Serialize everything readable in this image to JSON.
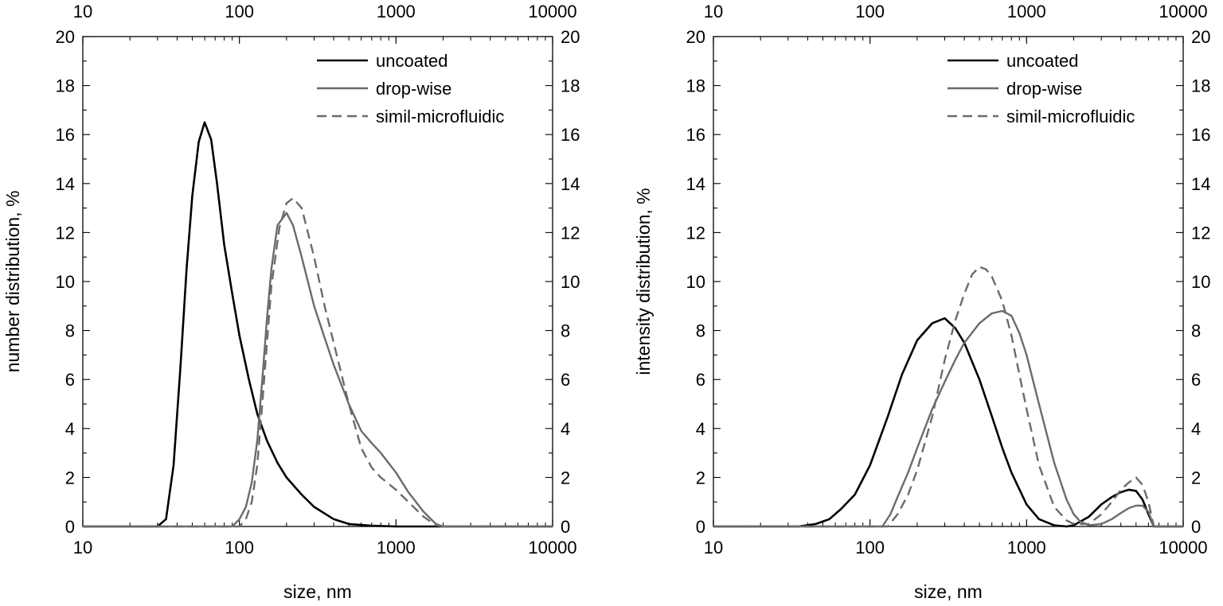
{
  "chart_data": [
    {
      "type": "line",
      "xscale": "log",
      "xlim": [
        10,
        10000
      ],
      "ylim": [
        0,
        20
      ],
      "xticks": [
        "10",
        "100",
        "1000",
        "10000"
      ],
      "yticks": [
        "0",
        "2",
        "4",
        "6",
        "8",
        "10",
        "12",
        "14",
        "16",
        "18",
        "20"
      ],
      "xlabel": "size, nm",
      "ylabel": "number distribution, %",
      "legend_position": "top-right",
      "series": [
        {
          "name": "uncoated",
          "color": "#000000",
          "dash": "solid",
          "x": [
            10,
            30,
            34,
            38,
            42,
            46,
            50,
            55,
            60,
            66,
            72,
            80,
            90,
            100,
            115,
            130,
            150,
            175,
            200,
            250,
            300,
            400,
            500,
            700,
            1000,
            10000
          ],
          "y": [
            0,
            0,
            0.3,
            2.5,
            6.5,
            10.5,
            13.5,
            15.7,
            16.5,
            15.8,
            14,
            11.5,
            9.5,
            7.8,
            6.0,
            4.6,
            3.5,
            2.6,
            2.0,
            1.3,
            0.8,
            0.3,
            0.1,
            0.03,
            0,
            0
          ]
        },
        {
          "name": "drop-wise",
          "color": "#6b6b6b",
          "dash": "solid",
          "x": [
            10,
            90,
            100,
            110,
            120,
            130,
            140,
            150,
            160,
            175,
            200,
            220,
            250,
            300,
            350,
            400,
            500,
            600,
            700,
            800,
            1000,
            1200,
            1500,
            1800,
            2000,
            10000
          ],
          "y": [
            0,
            0,
            0.3,
            0.8,
            1.8,
            3.5,
            6,
            8.5,
            10.5,
            12.3,
            12.8,
            12.3,
            11,
            9,
            7.7,
            6.6,
            5,
            3.9,
            3.4,
            3.0,
            2.2,
            1.4,
            0.6,
            0.1,
            0,
            0
          ]
        },
        {
          "name": "simil-microfluidic",
          "color": "#6b6b6b",
          "dash": "dashed",
          "x": [
            10,
            100,
            110,
            120,
            130,
            140,
            150,
            160,
            180,
            200,
            220,
            250,
            300,
            350,
            400,
            500,
            600,
            700,
            800,
            1000,
            1200,
            1500,
            1800,
            2000,
            10000
          ],
          "y": [
            0,
            0,
            0.3,
            1.0,
            2.5,
            5,
            7.5,
            9.8,
            12.2,
            13.2,
            13.4,
            13,
            11,
            9,
            7.5,
            5.0,
            3.2,
            2.4,
            2.0,
            1.5,
            1.0,
            0.4,
            0.05,
            0,
            0
          ]
        }
      ]
    },
    {
      "type": "line",
      "xscale": "log",
      "xlim": [
        10,
        10000
      ],
      "ylim": [
        0,
        20
      ],
      "xticks": [
        "10",
        "100",
        "1000",
        "10000"
      ],
      "yticks": [
        "0",
        "2",
        "4",
        "6",
        "8",
        "10",
        "12",
        "14",
        "16",
        "18",
        "20"
      ],
      "xlabel": "size, nm",
      "ylabel": "intensity distribution, %",
      "legend_position": "top-right",
      "series": [
        {
          "name": "uncoated",
          "color": "#000000",
          "dash": "solid",
          "x": [
            10,
            35,
            45,
            55,
            65,
            80,
            100,
            130,
            160,
            200,
            250,
            300,
            350,
            400,
            500,
            600,
            700,
            800,
            1000,
            1200,
            1500,
            1800,
            2000,
            2500,
            3000,
            3500,
            4000,
            4500,
            5000,
            5500,
            6000,
            6500,
            10000
          ],
          "y": [
            0,
            0,
            0.1,
            0.3,
            0.7,
            1.3,
            2.5,
            4.5,
            6.2,
            7.6,
            8.3,
            8.5,
            8.1,
            7.5,
            6.0,
            4.5,
            3.2,
            2.2,
            0.9,
            0.3,
            0.05,
            0,
            0.05,
            0.4,
            0.9,
            1.2,
            1.4,
            1.5,
            1.45,
            1.1,
            0.5,
            0,
            0
          ]
        },
        {
          "name": "drop-wise",
          "color": "#6b6b6b",
          "dash": "solid",
          "x": [
            10,
            120,
            135,
            150,
            175,
            200,
            250,
            300,
            350,
            400,
            500,
            600,
            700,
            800,
            900,
            1000,
            1200,
            1500,
            1800,
            2000,
            2200,
            2500,
            3000,
            3500,
            4000,
            4500,
            5000,
            5500,
            6000,
            6500,
            10000
          ],
          "y": [
            0,
            0,
            0.5,
            1.2,
            2.2,
            3.2,
            4.8,
            5.9,
            6.8,
            7.5,
            8.3,
            8.7,
            8.8,
            8.6,
            7.9,
            7.0,
            5.0,
            2.6,
            1.1,
            0.5,
            0.2,
            0.05,
            0.1,
            0.3,
            0.55,
            0.75,
            0.85,
            0.85,
            0.6,
            0,
            0
          ]
        },
        {
          "name": "simil-microfluidic",
          "color": "#6b6b6b",
          "dash": "dashed",
          "x": [
            10,
            130,
            150,
            175,
            200,
            250,
            300,
            350,
            400,
            450,
            500,
            550,
            600,
            700,
            800,
            900,
            1000,
            1200,
            1500,
            1800,
            2000,
            2500,
            3000,
            3500,
            4000,
            4500,
            5000,
            5500,
            6000,
            6500,
            10000
          ],
          "y": [
            0,
            0,
            0.5,
            1.3,
            2.3,
            4.5,
            6.8,
            8.4,
            9.5,
            10.3,
            10.6,
            10.5,
            10.2,
            9.2,
            7.8,
            6.2,
            4.8,
            2.5,
            0.8,
            0.25,
            0.1,
            0.1,
            0.5,
            1.0,
            1.5,
            1.8,
            2.0,
            1.7,
            1.0,
            0,
            0
          ]
        }
      ]
    }
  ]
}
